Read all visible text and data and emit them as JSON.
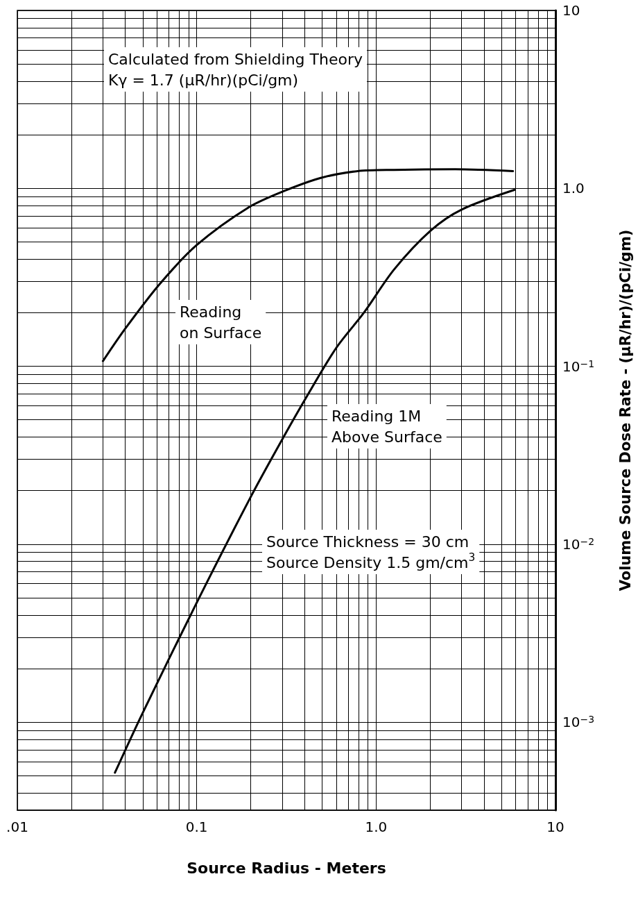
{
  "chart_data": {
    "type": "line",
    "xlabel": "Source Radius - Meters",
    "ylabel": "Volume Source Dose Rate - (μR/hr)/(pCi/gm)",
    "annotations": [
      "Calculated from Shielding Theory\nKγ = 1.7 (μR/hr)(pCi/gm)",
      "Source Thickness = 30 cm\nSource Density 1.5 gm/cm$^{3}$"
    ],
    "log": "xy",
    "grid": true,
    "xlim": [
      0.01,
      10
    ],
    "ylim": [
      0.00032,
      10
    ],
    "xticks": [
      {
        "value": 0.01,
        "label": ".01"
      },
      {
        "value": 0.02,
        "label": null
      },
      {
        "value": 0.03,
        "label": null
      },
      {
        "value": 0.04,
        "label": null
      },
      {
        "value": 0.05,
        "label": null
      },
      {
        "value": 0.06,
        "label": null
      },
      {
        "value": 0.07,
        "label": null
      },
      {
        "value": 0.08,
        "label": null
      },
      {
        "value": 0.09,
        "label": null
      },
      {
        "value": 0.1,
        "label": "0.1"
      },
      {
        "value": 0.2,
        "label": null
      },
      {
        "value": 0.3,
        "label": null
      },
      {
        "value": 0.4,
        "label": null
      },
      {
        "value": 0.5,
        "label": null
      },
      {
        "value": 0.6,
        "label": null
      },
      {
        "value": 0.7,
        "label": null
      },
      {
        "value": 0.8,
        "label": null
      },
      {
        "value": 0.9,
        "label": null
      },
      {
        "value": 1,
        "label": "1.0"
      },
      {
        "value": 2,
        "label": null
      },
      {
        "value": 3,
        "label": null
      },
      {
        "value": 4,
        "label": null
      },
      {
        "value": 5,
        "label": null
      },
      {
        "value": 6,
        "label": null
      },
      {
        "value": 7,
        "label": null
      },
      {
        "value": 8,
        "label": null
      },
      {
        "value": 9,
        "label": null
      },
      10
    ],
    "yticks": [
      {
        "value": 0.0004,
        "label": null
      },
      {
        "value": 0.0005,
        "label": null
      },
      {
        "value": 0.0006,
        "label": null
      },
      {
        "value": 0.0007,
        "label": null
      },
      {
        "value": 0.0008,
        "label": null
      },
      {
        "value": 0.0009,
        "label": null
      },
      {
        "value": 0.001,
        "label": "10$^{−3}$"
      },
      {
        "value": 0.002,
        "label": null
      },
      {
        "value": 0.003,
        "label": null
      },
      {
        "value": 0.004,
        "label": null
      },
      {
        "value": 0.005,
        "label": null
      },
      {
        "value": 0.006,
        "label": null
      },
      {
        "value": 0.007,
        "label": null
      },
      {
        "value": 0.008,
        "label": null
      },
      {
        "value": 0.009,
        "label": null
      },
      {
        "value": 0.01,
        "label": "10$^{−2}$"
      },
      {
        "value": 0.02,
        "label": null
      },
      {
        "value": 0.03,
        "label": null
      },
      {
        "value": 0.04,
        "label": null
      },
      {
        "value": 0.05,
        "label": null
      },
      {
        "value": 0.06,
        "label": null
      },
      {
        "value": 0.07,
        "label": null
      },
      {
        "value": 0.08,
        "label": null
      },
      {
        "value": 0.09,
        "label": null
      },
      {
        "value": 0.1,
        "label": "10$^{−1}$"
      },
      {
        "value": 0.2,
        "label": null
      },
      {
        "value": 0.3,
        "label": null
      },
      {
        "value": 0.4,
        "label": null
      },
      {
        "value": 0.5,
        "label": null
      },
      {
        "value": 0.6,
        "label": null
      },
      {
        "value": 0.7,
        "label": null
      },
      {
        "value": 0.8,
        "label": null
      },
      {
        "value": 0.9,
        "label": null
      },
      {
        "value": 1,
        "label": "1.0"
      },
      {
        "value": 2,
        "label": null
      },
      {
        "value": 3,
        "label": null
      },
      {
        "value": 4,
        "label": null
      },
      {
        "value": 5,
        "label": null
      },
      {
        "value": 6,
        "label": null
      },
      {
        "value": 7,
        "label": null
      },
      {
        "value": 8,
        "label": null
      },
      {
        "value": 9,
        "label": null
      },
      10
    ],
    "series": [
      {
        "name": "Reading\non Surface",
        "color": "#000000",
        "x": [
          0.03,
          0.04,
          0.062,
          0.1,
          0.194,
          0.31,
          0.5,
          0.79,
          1.26,
          2.76,
          5.8
        ],
        "values": [
          0.107,
          0.163,
          0.289,
          0.48,
          0.78,
          0.97,
          1.15,
          1.25,
          1.27,
          1.28,
          1.25
        ]
      },
      {
        "name": "Reading 1M\nAbove Surface",
        "color": "#000000",
        "x": [
          0.035,
          0.0494,
          0.099,
          0.202,
          0.303,
          0.412,
          0.6,
          0.855,
          1.26,
          2.02,
          3,
          5.9
        ],
        "values": [
          0.00052,
          0.0011,
          0.0046,
          0.0188,
          0.0396,
          0.068,
          0.127,
          0.2,
          0.35,
          0.58,
          0.76,
          0.98
        ]
      }
    ]
  }
}
